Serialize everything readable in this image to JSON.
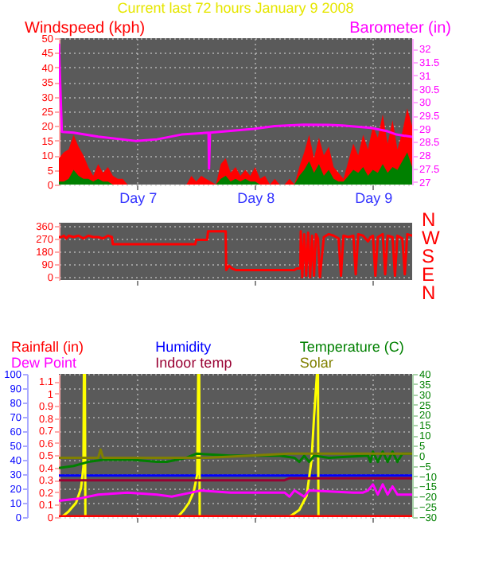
{
  "chart_data": [
    {
      "type": "area",
      "title": "Current last 72 hours January 9 2008",
      "ylabel": "Windspeed (kph)",
      "y2label": "Barometer (in)",
      "xlim": [
        "2008-01-06T08:00",
        "2008-01-09T08:00"
      ],
      "xticks": [
        {
          "value": "2008-01-07",
          "label": "Day 7"
        },
        {
          "value": "2008-01-08",
          "label": "Day 8"
        },
        {
          "value": "2008-01-09",
          "label": "Day 9"
        }
      ],
      "ylim": [
        0,
        50
      ],
      "yticks": [
        0,
        5,
        10,
        15,
        20,
        25,
        30,
        35,
        40,
        45,
        50
      ],
      "y2lim": [
        26.9,
        32.4
      ],
      "y2ticks": [
        27,
        27.5,
        28,
        28.5,
        29,
        29.5,
        30,
        30.5,
        31,
        31.5,
        32
      ],
      "grid": true,
      "x": [
        "2008-01-06T08:00",
        "2008-01-06T09:00",
        "2008-01-06T10:00",
        "2008-01-06T11:00",
        "2008-01-06T12:00",
        "2008-01-06T13:00",
        "2008-01-06T14:00",
        "2008-01-06T15:00",
        "2008-01-06T16:00",
        "2008-01-06T17:00",
        "2008-01-06T18:00",
        "2008-01-06T19:00",
        "2008-01-06T20:00",
        "2008-01-06T21:00",
        "2008-01-06T22:00",
        "2008-01-06T23:00",
        "2008-01-07T00:00",
        "2008-01-07T01:00",
        "2008-01-07T02:00",
        "2008-01-07T03:00",
        "2008-01-07T04:00",
        "2008-01-07T05:00",
        "2008-01-07T06:00",
        "2008-01-07T07:00",
        "2008-01-07T08:00",
        "2008-01-07T09:00",
        "2008-01-07T10:00",
        "2008-01-07T11:00",
        "2008-01-07T12:00",
        "2008-01-07T13:00",
        "2008-01-07T14:00",
        "2008-01-07T15:00",
        "2008-01-07T16:00",
        "2008-01-07T17:00",
        "2008-01-07T18:00",
        "2008-01-07T19:00",
        "2008-01-07T20:00",
        "2008-01-07T21:00",
        "2008-01-07T22:00",
        "2008-01-07T23:00",
        "2008-01-08T00:00",
        "2008-01-08T01:00",
        "2008-01-08T02:00",
        "2008-01-08T03:00",
        "2008-01-08T04:00",
        "2008-01-08T05:00",
        "2008-01-08T06:00",
        "2008-01-08T07:00",
        "2008-01-08T08:00",
        "2008-01-08T09:00",
        "2008-01-08T10:00",
        "2008-01-08T11:00",
        "2008-01-08T12:00",
        "2008-01-08T13:00",
        "2008-01-08T14:00",
        "2008-01-08T15:00",
        "2008-01-08T16:00",
        "2008-01-08T17:00",
        "2008-01-08T18:00",
        "2008-01-08T19:00",
        "2008-01-08T20:00",
        "2008-01-08T21:00",
        "2008-01-08T22:00",
        "2008-01-08T23:00",
        "2008-01-09T00:00",
        "2008-01-09T01:00",
        "2008-01-09T02:00",
        "2008-01-09T03:00",
        "2008-01-09T04:00",
        "2008-01-09T05:00",
        "2008-01-09T06:00",
        "2008-01-09T07:00",
        "2008-01-09T08:00"
      ],
      "series": [
        {
          "color": "#ff0000",
          "values": [
            9,
            11,
            12,
            17,
            13,
            10,
            6,
            3,
            7,
            4,
            6,
            3,
            2,
            2,
            0,
            0,
            0,
            0,
            0,
            0,
            0,
            0,
            0,
            0,
            0,
            0,
            0,
            3,
            1,
            3,
            2,
            1,
            0,
            7,
            9,
            4,
            6,
            3,
            5,
            3,
            6,
            2,
            3,
            0,
            2,
            0,
            0,
            2,
            0,
            6,
            11,
            17,
            9,
            16,
            10,
            13,
            6,
            4,
            2,
            8,
            14,
            10,
            17,
            12,
            20,
            16,
            24,
            14,
            22,
            12,
            18,
            26,
            20
          ]
        },
        {
          "color": "#008000",
          "values": [
            1,
            1,
            2,
            5,
            3,
            2,
            2,
            1,
            2,
            1,
            1,
            0,
            0,
            0,
            0,
            0,
            0,
            0,
            0,
            0,
            0,
            0,
            0,
            0,
            0,
            0,
            0,
            0,
            0,
            0,
            0,
            0,
            0,
            2,
            3,
            1,
            2,
            1,
            2,
            1,
            1,
            0,
            0,
            0,
            0,
            0,
            0,
            0,
            0,
            3,
            5,
            8,
            4,
            7,
            3,
            5,
            2,
            1,
            1,
            3,
            5,
            4,
            6,
            3,
            5,
            4,
            7,
            4,
            6,
            5,
            8,
            11,
            6
          ]
        },
        {
          "type": "line",
          "axis": "y2",
          "color": "#ff00ff",
          "x": [
            "2008-01-06T08:00",
            "2008-01-06T08:36",
            "2008-01-06T11:00",
            "2008-01-06T16:00",
            "2008-01-06T23:36",
            "2008-01-07T04:00",
            "2008-01-07T09:00",
            "2008-01-07T14:30",
            "2008-01-07T14:36",
            "2008-01-07T14:48",
            "2008-01-07T19:00",
            "2008-01-07T23:42",
            "2008-01-08T04:00",
            "2008-01-08T09:54",
            "2008-01-08T15:00",
            "2008-01-08T17:48",
            "2008-01-08T23:36",
            "2008-01-09T03:00",
            "2008-01-09T04:48",
            "2008-01-09T08:00"
          ],
          "values": [
            32.2,
            28.88,
            28.85,
            28.7,
            28.54,
            28.6,
            28.78,
            28.85,
            27.5,
            28.85,
            28.92,
            28.99,
            29.1,
            29.15,
            29.14,
            29.12,
            29.03,
            28.9,
            28.78,
            28.69
          ]
        }
      ]
    },
    {
      "type": "line",
      "xlim": [
        "2008-01-06T08:00",
        "2008-01-09T08:00"
      ],
      "xticks": [
        {
          "value": "2008-01-07",
          "label": null
        },
        {
          "value": "2008-01-08",
          "label": null
        },
        {
          "value": "2008-01-09",
          "label": null
        }
      ],
      "ylim": [
        -20,
        380
      ],
      "yticks": [
        0,
        90,
        180,
        270,
        360
      ],
      "annotations": [
        "N",
        "W",
        "S",
        "E",
        "N"
      ],
      "tick_labels": "y",
      "grid": "y",
      "series": [
        {
          "color": "#ff0000",
          "x": [
            "2008-01-06T08:00",
            "2008-01-06T08:30",
            "2008-01-06T09:00",
            "2008-01-06T09:30",
            "2008-01-06T10:00",
            "2008-01-06T11:00",
            "2008-01-06T12:00",
            "2008-01-06T13:00",
            "2008-01-06T14:00",
            "2008-01-06T15:00",
            "2008-01-06T16:00",
            "2008-01-06T17:00",
            "2008-01-06T18:00",
            "2008-01-06T18:48",
            "2008-01-06T19:00",
            "2008-01-07T00:00",
            "2008-01-07T04:00",
            "2008-01-07T08:00",
            "2008-01-07T11:48",
            "2008-01-07T12:00",
            "2008-01-07T14:12",
            "2008-01-07T14:24",
            "2008-01-07T18:00",
            "2008-01-07T18:06",
            "2008-01-07T18:42",
            "2008-01-07T19:18",
            "2008-01-07T20:00",
            "2008-01-08T00:00",
            "2008-01-08T04:00",
            "2008-01-08T07:00",
            "2008-01-08T08:00",
            "2008-01-08T08:30",
            "2008-01-08T09:12",
            "2008-01-08T09:18",
            "2008-01-08T09:36",
            "2008-01-08T10:00",
            "2008-01-08T10:24",
            "2008-01-08T10:48",
            "2008-01-08T11:12",
            "2008-01-08T11:36",
            "2008-01-08T12:00",
            "2008-01-08T12:24",
            "2008-01-08T12:48",
            "2008-01-08T13:12",
            "2008-01-08T14:00",
            "2008-01-08T15:00",
            "2008-01-08T16:00",
            "2008-01-08T17:00",
            "2008-01-08T17:30",
            "2008-01-08T18:00",
            "2008-01-08T19:00",
            "2008-01-08T20:00",
            "2008-01-08T20:30",
            "2008-01-08T21:00",
            "2008-01-08T22:00",
            "2008-01-08T23:00",
            "2008-01-08T23:30",
            "2008-01-09T00:00",
            "2008-01-09T00:30",
            "2008-01-09T01:00",
            "2008-01-09T02:00",
            "2008-01-09T02:30",
            "2008-01-09T03:00",
            "2008-01-09T04:00",
            "2008-01-09T04:30",
            "2008-01-09T05:00",
            "2008-01-09T06:00",
            "2008-01-09T06:30",
            "2008-01-09T07:00",
            "2008-01-09T08:00"
          ],
          "values": [
            280,
            280,
            290,
            270,
            290,
            280,
            290,
            270,
            290,
            280,
            280,
            270,
            290,
            280,
            230,
            230,
            230,
            230,
            230,
            260,
            260,
            320,
            320,
            50,
            80,
            60,
            50,
            50,
            50,
            50,
            50,
            60,
            60,
            320,
            0,
            300,
            10,
            310,
            0,
            290,
            10,
            300,
            270,
            0,
            280,
            300,
            290,
            270,
            10,
            290,
            280,
            290,
            20,
            300,
            290,
            250,
            280,
            290,
            10,
            280,
            300,
            20,
            290,
            280,
            10,
            290,
            270,
            20,
            300,
            290
          ]
        }
      ]
    },
    {
      "type": "line",
      "xlim": [
        "2008-01-06T08:00",
        "2008-01-09T08:00"
      ],
      "xticks": [
        {
          "value": "2008-01-07",
          "label": null
        },
        {
          "value": "2008-01-08",
          "label": null
        },
        {
          "value": "2008-01-09",
          "label": null
        }
      ],
      "ylim": [
        0,
        100
      ],
      "yticks": [
        0,
        10,
        20,
        30,
        40,
        50,
        60,
        70,
        80,
        90,
        100
      ],
      "y2lim": [
        0,
        1.16
      ],
      "y2ticks": [
        0,
        0.1,
        0.2,
        0.3,
        0.4,
        0.5,
        0.6,
        0.7,
        0.8,
        0.9,
        1,
        1.1
      ],
      "y3lim": [
        -30,
        40
      ],
      "y3ticks": [
        -30,
        -25,
        -20,
        -15,
        -10,
        -5,
        0,
        5,
        10,
        15,
        20,
        25,
        30,
        35,
        40
      ],
      "tick_labels": "y",
      "grid": true,
      "legend": "top",
      "series": [
        {
          "name": "Rainfall (in)",
          "axis": "y2",
          "color": "#ff0000",
          "x": [
            "2008-01-06T08:00",
            "2008-01-09T08:00"
          ],
          "values": [
            0,
            0
          ]
        },
        {
          "name": "Humidity",
          "color": "#0000ff",
          "x": [
            "2008-01-06T08:00",
            "2008-01-06T20:00",
            "2008-01-07T08:00",
            "2008-01-07T20:00",
            "2008-01-08T08:00",
            "2008-01-08T20:00",
            "2008-01-09T08:00"
          ],
          "values": [
            29,
            29,
            29,
            29,
            29,
            29,
            29
          ]
        },
        {
          "name": "Temperature (C)",
          "axis": "y3",
          "color": "#008000",
          "x": [
            "2008-01-06T08:00",
            "2008-01-06T11:00",
            "2008-01-06T14:00",
            "2008-01-06T17:00",
            "2008-01-06T23:00",
            "2008-01-07T04:00",
            "2008-01-07T06:00",
            "2008-01-07T10:00",
            "2008-01-07T12:00",
            "2008-01-07T19:00",
            "2008-01-08T05:00",
            "2008-01-08T08:00",
            "2008-01-08T09:00",
            "2008-01-08T10:00",
            "2008-01-08T11:00",
            "2008-01-08T12:00",
            "2008-01-08T15:00",
            "2008-01-08T23:00",
            "2008-01-08T23:30",
            "2008-01-09T00:00",
            "2008-01-09T01:00",
            "2008-01-09T02:00",
            "2008-01-09T03:00",
            "2008-01-09T04:00",
            "2008-01-09T05:00",
            "2008-01-09T06:00",
            "2008-01-09T08:00"
          ],
          "values": [
            -6,
            -5,
            -3,
            -2,
            -2,
            -3,
            -3,
            -1,
            1,
            0,
            0,
            -1,
            -3,
            0,
            -3,
            0,
            -1,
            0,
            -3,
            2,
            -3,
            2,
            -3,
            2,
            -3,
            1,
            1
          ]
        },
        {
          "name": "Dew Point",
          "axis": "y3",
          "color": "#ff00ff",
          "x": [
            "2008-01-06T08:00",
            "2008-01-06T12:00",
            "2008-01-06T16:00",
            "2008-01-06T22:00",
            "2008-01-07T04:00",
            "2008-01-07T07:00",
            "2008-01-07T11:00",
            "2008-01-07T13:00",
            "2008-01-07T19:00",
            "2008-01-08T06:00",
            "2008-01-08T07:00",
            "2008-01-08T08:00",
            "2008-01-08T10:00",
            "2008-01-08T11:00",
            "2008-01-08T20:00",
            "2008-01-08T22:00",
            "2008-01-08T23:00",
            "2008-01-09T00:00",
            "2008-01-09T01:00",
            "2008-01-09T02:00",
            "2008-01-09T03:00",
            "2008-01-09T04:00",
            "2008-01-09T05:00",
            "2008-01-09T06:00",
            "2008-01-09T08:00"
          ],
          "values": [
            -22,
            -21,
            -19,
            -18,
            -19,
            -20,
            -18,
            -17,
            -18,
            -18,
            -20,
            -17,
            -20,
            -17,
            -18,
            -18,
            -17,
            -14,
            -19,
            -14,
            -19,
            -15,
            -19,
            -19,
            -19
          ]
        },
        {
          "name": "Indoor temp",
          "axis": "y3",
          "color": "#990033",
          "x": [
            "2008-01-06T08:00",
            "2008-01-07T04:00",
            "2008-01-08T06:00",
            "2008-01-08T07:00",
            "2008-01-08T20:00",
            "2008-01-09T08:00"
          ],
          "values": [
            -12,
            -12,
            -12,
            -11,
            -11,
            -11
          ]
        },
        {
          "name": "Solar",
          "axis": "y3",
          "color": "#808000",
          "x": [
            "2008-01-06T08:00",
            "2008-01-06T16:00",
            "2008-01-06T16:30",
            "2008-01-06T17:00",
            "2008-01-07T14:00",
            "2008-01-08T07:00",
            "2008-01-09T08:00"
          ],
          "values": [
            -1,
            -1,
            3,
            -1,
            -1,
            1,
            1
          ]
        },
        {
          "color": "#ffff00",
          "x": [
            "2008-01-06T08:00",
            "2008-01-06T08:36",
            "2008-01-06T10:00",
            "2008-01-06T11:30",
            "2008-01-06T12:30",
            "2008-01-06T13:00",
            "2008-01-06T13:06",
            "2008-01-06T13:18",
            "2008-01-06T13:24",
            "2008-01-07T08:12",
            "2008-01-07T09:30",
            "2008-01-07T10:30",
            "2008-01-07T11:30",
            "2008-01-07T12:12",
            "2008-01-07T12:24",
            "2008-01-07T12:36",
            "2008-01-07T12:42",
            "2008-01-08T06:54",
            "2008-01-08T09:00",
            "2008-01-08T10:30",
            "2008-01-08T11:30",
            "2008-01-08T12:00",
            "2008-01-08T12:36",
            "2008-01-08T12:48",
            "2008-01-08T12:54",
            "2008-01-09T08:00"
          ],
          "values": [
            0,
            0,
            4,
            10,
            20,
            35,
            100,
            100,
            0,
            0,
            5,
            10,
            18,
            30,
            100,
            100,
            0,
            0,
            5,
            15,
            40,
            70,
            100,
            100,
            0,
            0
          ]
        }
      ]
    }
  ]
}
